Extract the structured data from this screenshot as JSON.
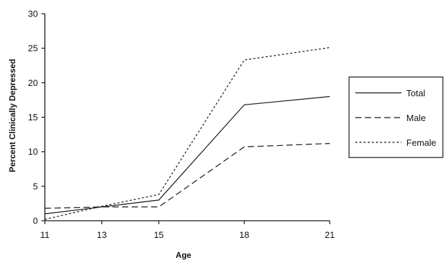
{
  "chart_data": {
    "type": "line",
    "xlabel": "Age",
    "ylabel": "Percent Clinically Depressed",
    "categories": [
      "11",
      "13",
      "15",
      "18",
      "21"
    ],
    "ylim": [
      0,
      30
    ],
    "yticks": [
      "0",
      "5",
      "10",
      "15",
      "20",
      "25",
      "30"
    ],
    "grid": false,
    "legend_position": "right",
    "series": [
      {
        "name": "Total",
        "values": [
          1.0,
          2.0,
          3.0,
          16.8,
          18.0
        ],
        "dash": "solid"
      },
      {
        "name": "Male",
        "values": [
          1.8,
          2.0,
          2.0,
          10.7,
          11.2
        ],
        "dash": "dashed"
      },
      {
        "name": "Female",
        "values": [
          0.2,
          2.1,
          3.8,
          23.3,
          25.1
        ],
        "dash": "dotted"
      }
    ]
  }
}
